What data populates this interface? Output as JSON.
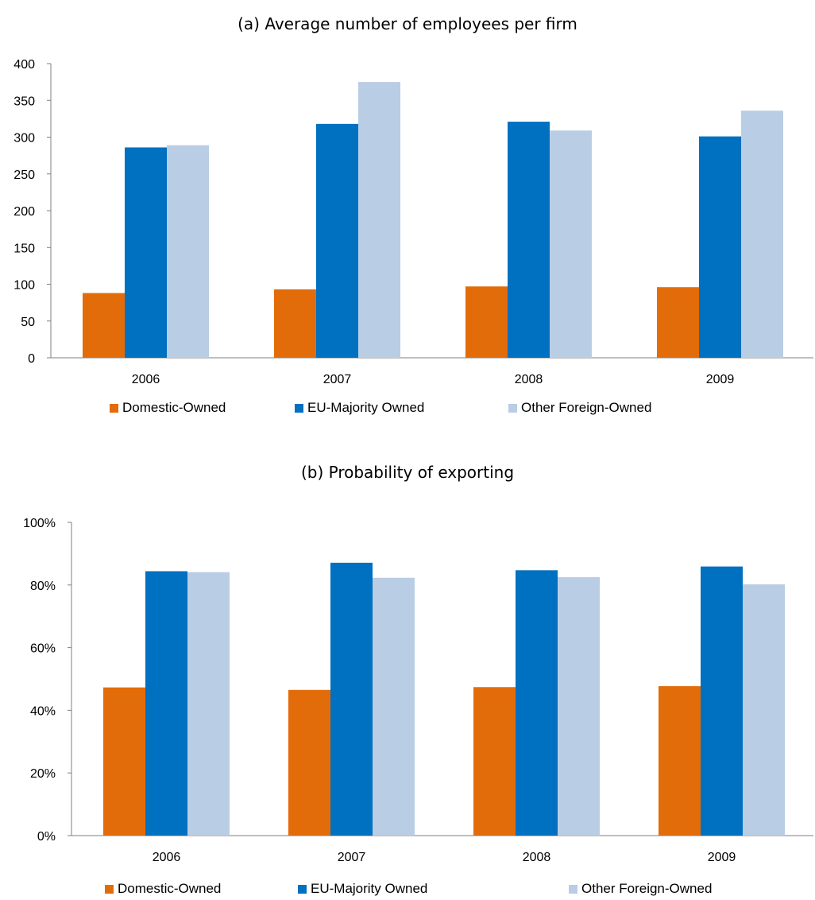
{
  "chart_data": [
    {
      "type": "bar",
      "title": "(a) Average number of employees per firm",
      "categories": [
        "2006",
        "2007",
        "2008",
        "2009"
      ],
      "series": [
        {
          "name": "Domestic-Owned",
          "values": [
            88,
            93,
            97,
            96
          ],
          "color": "#E36C0A"
        },
        {
          "name": "EU-Majority Owned",
          "values": [
            286,
            318,
            321,
            301
          ],
          "color": "#0070C0"
        },
        {
          "name": "Other Foreign-Owned",
          "values": [
            289,
            375,
            309,
            336
          ],
          "color": "#B9CDE5"
        }
      ],
      "ylim": [
        0,
        400
      ],
      "yticks": [
        0,
        50,
        100,
        150,
        200,
        250,
        300,
        350,
        400
      ],
      "ytick_labels": [
        "0",
        "50",
        "100",
        "150",
        "200",
        "250",
        "300",
        "350",
        "400"
      ],
      "grid": false,
      "legend_position": "bottom"
    },
    {
      "type": "bar",
      "title": "(b) Probability of exporting",
      "categories": [
        "2006",
        "2007",
        "2008",
        "2009"
      ],
      "series": [
        {
          "name": "Domestic-Owned",
          "values": [
            0.473,
            0.465,
            0.474,
            0.477
          ],
          "color": "#E36C0A"
        },
        {
          "name": "EU-Majority Owned",
          "values": [
            0.844,
            0.871,
            0.847,
            0.859
          ],
          "color": "#0070C0"
        },
        {
          "name": "Other Foreign-Owned",
          "values": [
            0.841,
            0.823,
            0.825,
            0.802
          ],
          "color": "#B9CDE5"
        }
      ],
      "ylim": [
        0,
        1
      ],
      "yticks": [
        0,
        0.2,
        0.4,
        0.6,
        0.8,
        1.0
      ],
      "ytick_labels": [
        "0%",
        "20%",
        "40%",
        "60%",
        "80%",
        "100%"
      ],
      "grid": false,
      "legend_position": "bottom"
    }
  ]
}
